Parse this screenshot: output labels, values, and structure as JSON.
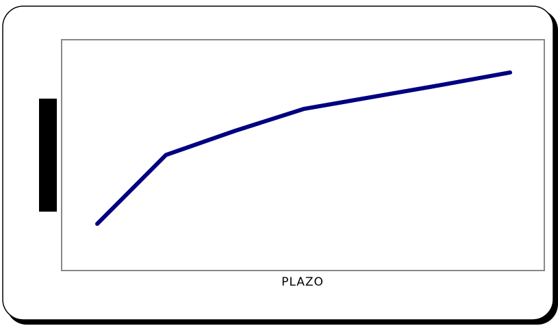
{
  "chart_data": {
    "type": "line",
    "x_label": "PLAZO",
    "categories": [
      null,
      null,
      null,
      null,
      null,
      null,
      null
    ],
    "series": [
      {
        "color": "#000080",
        "values": [
          20.2,
          50.1,
          60.5,
          70.0,
          75.2,
          80.4,
          85.8
        ]
      }
    ],
    "ylim": [
      0,
      100
    ]
  }
}
